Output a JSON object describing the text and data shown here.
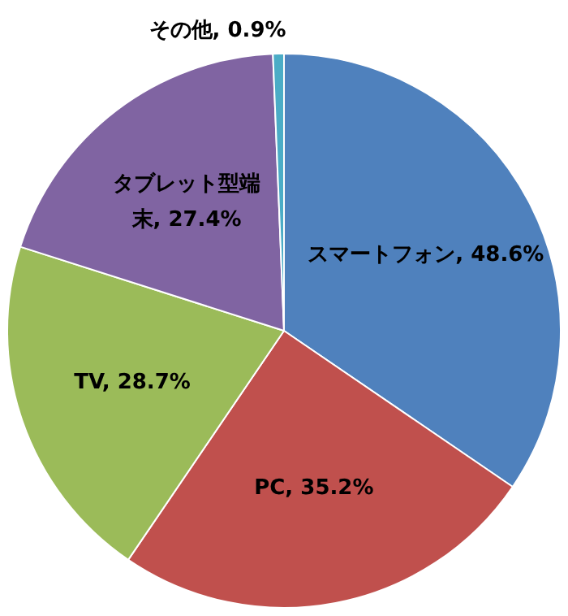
{
  "chart_data": {
    "type": "pie",
    "categories": [
      "スマートフォン",
      "PC",
      "TV",
      "タブレット型端末",
      "その他"
    ],
    "values": [
      48.6,
      35.2,
      28.7,
      27.4,
      0.9
    ],
    "value_labels": [
      "48.6%",
      "35.2%",
      "28.7%",
      "27.4%",
      "0.9%"
    ],
    "colors": [
      "#4f81bd",
      "#c0504d",
      "#9bbb59",
      "#8064a2",
      "#4bacc6"
    ],
    "legend": false
  }
}
